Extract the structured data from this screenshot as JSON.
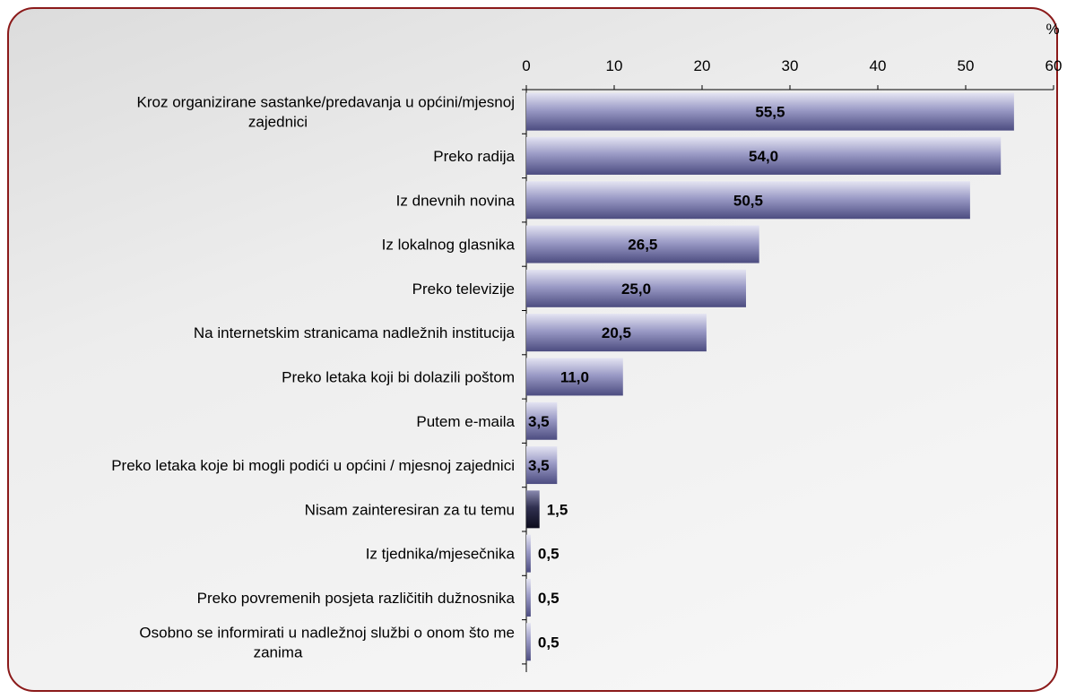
{
  "chart_data": {
    "type": "bar",
    "orientation": "horizontal",
    "unit_label": "%",
    "xlim": [
      0,
      60
    ],
    "ticks": [
      0,
      10,
      20,
      30,
      40,
      50,
      60
    ],
    "categories": [
      [
        "Kroz organizirane sastanke/predavanja u općini/mjesnoj",
        "zajednici"
      ],
      [
        "Preko radija"
      ],
      [
        "Iz dnevnih novina"
      ],
      [
        "Iz lokalnog glasnika"
      ],
      [
        "Preko televizije"
      ],
      [
        "Na internetskim stranicama nadležnih institucija"
      ],
      [
        "Preko letaka koji bi dolazili poštom"
      ],
      [
        "Putem e-maila"
      ],
      [
        "Preko letaka koje bi mogli podići u općini / mjesnoj zajednici"
      ],
      [
        "Nisam zainteresiran za tu temu"
      ],
      [
        "Iz tjednika/mjesečnika"
      ],
      [
        "Preko povremenih posjeta različitih dužnosnika"
      ],
      [
        "Osobno se informirati u nadležnoj službi o onom što me",
        "zanima"
      ]
    ],
    "values": [
      55.5,
      54.0,
      50.5,
      26.5,
      25.0,
      20.5,
      11.0,
      3.5,
      3.5,
      1.5,
      0.5,
      0.5,
      0.5
    ],
    "value_labels": [
      "55,5",
      "54,0",
      "50,5",
      "26,5",
      "25,0",
      "20,5",
      "11,0",
      "3,5",
      "3,5",
      "1,5",
      "0,5",
      "0,5",
      "0,5"
    ],
    "highlight_index": 9,
    "colors": {
      "bar_top": "#e4e4f2",
      "bar_mid": "#9b9bc6",
      "bar_bottom": "#4c4c80",
      "highlight_top": "#8a8ab0",
      "highlight_mid": "#303050",
      "highlight_bottom": "#0c0c1c",
      "frame_border": "#8b1a1a"
    }
  }
}
